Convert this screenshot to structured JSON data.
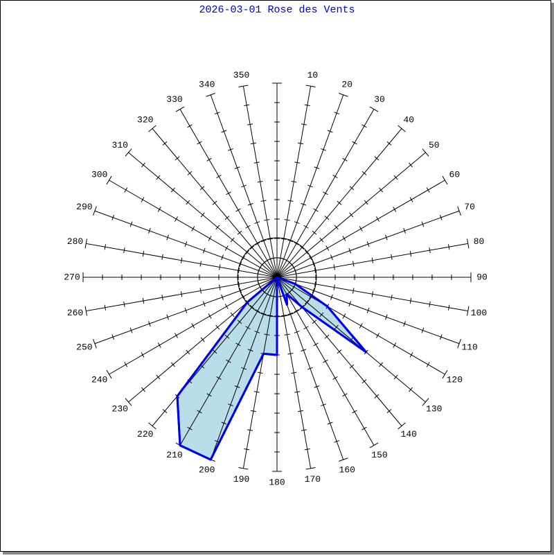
{
  "chart_data": {
    "type": "polar-area",
    "title": "2026-03-01 Rose des Vents",
    "categories": [
      null,
      "10",
      "20",
      "30",
      "40",
      "50",
      "60",
      "70",
      "80",
      "90",
      "100",
      "110",
      "120",
      "130",
      "140",
      "150",
      "160",
      "170",
      "180",
      "190",
      "200",
      "210",
      "220",
      "230",
      "240",
      "250",
      "260",
      "270",
      "280",
      "290",
      "300",
      "310",
      "320",
      "330",
      "340",
      "350"
    ],
    "values": [
      0,
      0,
      0,
      0,
      0,
      0,
      0,
      0,
      0,
      0,
      0,
      1,
      3,
      6,
      2,
      1,
      1.5,
      0,
      4,
      4,
      10,
      10,
      8,
      2,
      0,
      0,
      0,
      0,
      0,
      0,
      0,
      0,
      0,
      0,
      0,
      0
    ],
    "color": "#0000ee",
    "fill": "#add8e6",
    "ylim": [
      0,
      10
    ],
    "yticks": [
      1,
      2,
      3,
      4,
      5,
      6,
      7,
      8,
      9,
      10
    ]
  }
}
